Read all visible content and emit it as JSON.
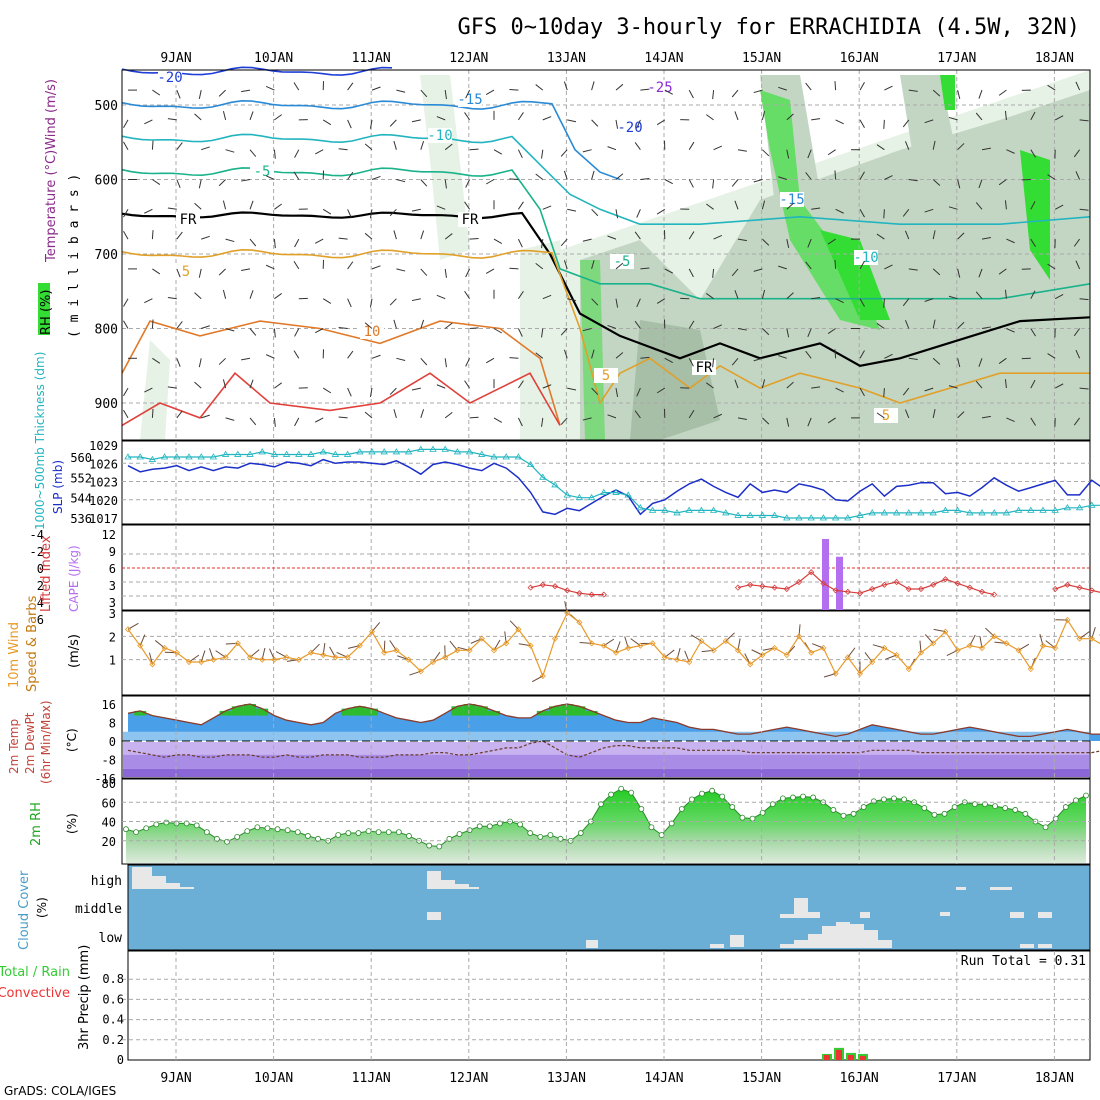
{
  "page": {
    "title": "GFS 0~10day 3-hourly for ERRACHIDIA (4.5W, 32N)",
    "credit": "GrADS: COLA/IGES",
    "dates": [
      "9JAN",
      "10JAN",
      "11JAN",
      "12JAN",
      "13JAN",
      "14JAN",
      "15JAN",
      "16JAN",
      "17JAN",
      "18JAN"
    ]
  },
  "colors": {
    "bg": "#ffffff",
    "grid": "#aaaaaa",
    "frame": "#000000",
    "rh_light": "#e6f2e6",
    "rh_mid": "#c3d6c3",
    "rh_dark": "#a6bfa6",
    "rh_green": "#33dd33",
    "slp": "#1c2fc8",
    "thickness": "#22b5bf",
    "lifted": "#d63c3c",
    "cape": "#b46ef0",
    "wind": "#e89a2a",
    "temp_warm": "#3a8fe0",
    "temp_green": "#2dbb2d",
    "dew": "#8a5fd8",
    "rh2m": "#33cc33",
    "cloud": "#6baed6",
    "precip_total": "#33cc33",
    "precip_conv": "#ee3333"
  },
  "panels": {
    "upper": {
      "ylabel_left": "RH (%)",
      "ylabel_mid": "Temperature (°C)Wind (m/s)",
      "ylabel_right": "( m i l l i b a r s )",
      "yticks": [
        "500",
        "600",
        "700",
        "800",
        "900"
      ]
    },
    "slp": {
      "ylabel_left": "1000~500mb Thickness (dm)",
      "ylabel_right": "SLP (mb)",
      "left_ticks": [
        "560",
        "552",
        "544",
        "536"
      ],
      "right_ticks": [
        "1029",
        "1026",
        "1023",
        "1020",
        "1017"
      ]
    },
    "cape": {
      "ylabel_left": "Lifted Index",
      "ylabel_right": "CAPE (J/kg)",
      "left_ticks": [
        "-4",
        "-2",
        "0",
        "2",
        "4",
        "6"
      ],
      "right_ticks": [
        "12",
        "9",
        "6",
        "3",
        "3"
      ]
    },
    "wind": {
      "ylabel_left": "10m Wind",
      "ylabel_mid": "Speed & Barbs",
      "ylabel_right": "(m/s)",
      "ticks": [
        "3",
        "2",
        "1"
      ]
    },
    "temp": {
      "ylabel_left": "2m Temp",
      "ylabel_mid": "2m DewPt",
      "ylabel_mid2": "(6hr Min/Max)",
      "ylabel_right": "(°C)",
      "ticks": [
        "16",
        "8",
        "0",
        "-8",
        "-16"
      ]
    },
    "rh": {
      "ylabel_left": "2m RH",
      "ylabel_right": "(%)",
      "ticks": [
        "80",
        "60",
        "40",
        "20"
      ]
    },
    "cloud": {
      "ylabel_left": "Cloud Cover",
      "ylabel_right": "(%)",
      "levels": [
        "high",
        "middle",
        "low"
      ]
    },
    "precip": {
      "ylabel_left": "Total / Rain",
      "ylabel_left2": "Convective",
      "ylabel_right": "3hr Precip (mm)",
      "ticks": [
        "0.8",
        "0.6",
        "0.4",
        "0.2",
        "0"
      ],
      "run_total": "Run Total = 0.31"
    }
  },
  "chart_data": [
    {
      "type": "line",
      "name": "upper-air temperature",
      "y_unit": "mb",
      "yticks": [
        500,
        600,
        700,
        800,
        900
      ],
      "annotations": [
        "-25",
        "-20",
        "-20",
        "-15",
        "-15",
        "-10",
        "-10",
        "-5",
        "-5",
        "FR",
        "FR",
        "FR",
        "5",
        "5",
        "5",
        "10"
      ],
      "rh_contours": [
        "10",
        "30",
        "30",
        "30",
        "50"
      ]
    },
    {
      "type": "line",
      "name": "SLP / Thickness",
      "series": [
        {
          "name": "SLP (mb)",
          "values": [
            1025.6,
            1024.6,
            1025.0,
            1025.2,
            1025.6,
            1024.8,
            1025.4,
            1024.8,
            1025.4,
            1025.2,
            1026.0,
            1025.8,
            1025.4,
            1026.2,
            1026.0,
            1025.6,
            1026.6,
            1026.0,
            1026.2,
            1026.2,
            1026.0,
            1025.8,
            1026.4,
            1025.4,
            1024.2,
            1025.8,
            1026.2,
            1025.8,
            1025.2,
            1024.8,
            1026.0,
            1025.2,
            1023.6,
            1021.2,
            1018.0,
            1017.6,
            1018.6,
            1018.2,
            1019.4,
            1020.6,
            1021.6,
            1020.6,
            1017.6,
            1019.4,
            1020.0,
            1021.4,
            1022.6,
            1023.4,
            1022.2,
            1021.2,
            1020.4,
            1022.6,
            1021.2,
            1021.6,
            1021.2,
            1022.6,
            1022.2,
            1021.6,
            1020.0,
            1019.8,
            1021.4,
            1022.6,
            1020.6,
            1022.2,
            1022.4,
            1022.8,
            1022.8,
            1021.0,
            1021.2,
            1020.6,
            1022.0,
            1023.6,
            1022.4,
            1021.4,
            1022.0,
            1022.6,
            1023.2,
            1020.8,
            1020.8,
            1023.2,
            1021.8,
            1021.6,
            1022.2,
            1022.6,
            1022.0,
            1021.4,
            1021.6
          ]
        },
        {
          "name": "Thickness (dm)",
          "values": [
            560,
            560,
            559,
            560,
            560,
            560,
            560,
            560,
            561,
            561,
            561,
            562,
            561,
            561,
            561,
            561,
            562,
            561,
            561,
            562,
            562,
            562,
            562,
            562,
            563,
            563,
            563,
            562,
            562,
            561,
            560,
            560,
            560,
            557,
            552,
            549,
            545,
            544,
            544,
            546,
            546,
            545,
            540,
            539,
            539,
            538,
            539,
            539,
            539,
            538,
            537,
            537,
            537,
            537,
            536,
            536,
            536,
            536,
            536,
            536,
            537,
            538,
            538,
            538,
            538,
            538,
            538,
            539,
            539,
            538,
            538,
            538,
            538,
            539,
            539,
            539,
            539,
            540,
            540,
            541,
            541,
            541,
            541,
            541,
            541,
            541,
            541
          ]
        }
      ]
    },
    {
      "type": "line",
      "name": "Lifted Index / CAPE",
      "x_start_index": 33,
      "series": [
        {
          "name": "Lifted Index",
          "values": [
            2.8,
            2.4,
            2.6,
            3.2,
            3.6,
            3.8,
            3.8,
            null,
            null,
            null,
            null,
            null,
            null,
            null,
            null,
            null,
            null,
            2.8,
            2.4,
            2.6,
            2.8,
            3.0,
            2.0,
            0.6,
            2.2,
            3.2,
            3.4,
            3.6,
            3.0,
            2.4,
            2.0,
            3.0,
            3.0,
            2.4,
            1.6,
            2.2,
            2.8,
            3.4,
            3.8,
            null,
            null,
            null,
            null,
            3.0,
            2.4,
            2.8,
            3.2,
            3.6
          ]
        },
        {
          "name": "CAPE (J/kg)",
          "values": [
            {
              "x": "15JAN21",
              "value": 12.0
            },
            {
              "x": "16JAN00",
              "value": 9.0
            }
          ]
        }
      ]
    },
    {
      "type": "line",
      "name": "10m wind speed (m/s)",
      "values": [
        2.3,
        1.6,
        0.8,
        1.5,
        1.3,
        0.9,
        0.9,
        1.0,
        1.1,
        1.7,
        1.1,
        1.0,
        1.0,
        1.1,
        1.0,
        1.3,
        1.2,
        1.1,
        1.1,
        1.6,
        2.2,
        1.3,
        1.4,
        1.0,
        0.5,
        0.9,
        1.1,
        1.4,
        1.4,
        1.9,
        1.4,
        1.7,
        2.3,
        1.6,
        0.3,
        1.9,
        3.0,
        2.6,
        1.7,
        1.6,
        1.3,
        1.5,
        1.6,
        1.7,
        1.1,
        1.0,
        0.9,
        1.8,
        1.4,
        1.8,
        1.4,
        0.8,
        1.2,
        1.5,
        1.2,
        2.0,
        1.3,
        1.5,
        0.4,
        1.1,
        0.4,
        0.9,
        1.5,
        1.2,
        0.6,
        1.3,
        1.7,
        2.2,
        1.4,
        1.6,
        1.5,
        2.0,
        1.7,
        1.4,
        0.6,
        1.6,
        1.5,
        2.7,
        1.9,
        1.9,
        1.6,
        1.7,
        1.7,
        1.9,
        1.7,
        1.5,
        1.7
      ]
    },
    {
      "type": "area",
      "name": "2m Temp / DewPt (°C)",
      "series": [
        {
          "name": "2m Temp",
          "values": [
            12,
            13,
            11,
            10,
            9,
            8,
            7,
            10,
            13,
            15,
            16,
            14,
            11,
            9,
            8,
            7,
            8,
            12,
            14,
            15,
            14,
            12,
            10,
            9,
            8,
            9,
            12,
            15,
            16,
            15,
            13,
            11,
            10,
            10,
            13,
            15,
            16,
            15,
            13,
            11,
            9,
            8,
            8,
            10,
            9,
            8,
            6,
            5,
            5,
            4,
            3,
            3,
            4,
            5,
            6,
            5,
            4,
            3,
            2,
            3,
            5,
            7,
            6,
            5,
            4,
            3,
            3,
            4,
            5,
            6,
            5,
            4,
            3,
            2,
            2,
            3,
            4,
            5,
            4,
            3,
            3,
            4,
            5,
            6,
            5,
            4,
            3
          ]
        },
        {
          "name": "2m DewPt",
          "values": [
            -4,
            -5,
            -6,
            -7,
            -6,
            -6,
            -7,
            -7,
            -6,
            -6,
            -6,
            -7,
            -7,
            -6,
            -7,
            -7,
            -6,
            -6,
            -6,
            -7,
            -7,
            -7,
            -6,
            -6,
            -6,
            -5,
            -5,
            -6,
            -6,
            -5,
            -4,
            -3,
            -3,
            -1,
            0,
            -3,
            -6,
            -7,
            -5,
            -3,
            -2,
            -2,
            -3,
            -3,
            -3,
            -3,
            -4,
            -4,
            -4,
            -4,
            -4,
            -5,
            -5,
            -5,
            -5,
            -5,
            -5,
            -5,
            -5,
            -5,
            -5,
            -4,
            -4,
            -4,
            -4,
            -5,
            -5,
            -5,
            -5,
            -5,
            -5,
            -5,
            -5,
            -5,
            -5,
            -5,
            -5,
            -5,
            -5,
            -5,
            -4,
            -4,
            -4,
            -4,
            -3,
            -2,
            -2
          ]
        }
      ]
    },
    {
      "type": "area",
      "name": "2m RH (%)",
      "values": [
        32,
        29,
        33,
        37,
        39,
        38,
        38,
        36,
        29,
        22,
        19,
        24,
        30,
        34,
        33,
        32,
        31,
        29,
        25,
        22,
        20,
        26,
        28,
        28,
        30,
        29,
        29,
        29,
        25,
        20,
        15,
        14,
        22,
        27,
        31,
        35,
        35,
        38,
        40,
        37,
        28,
        24,
        26,
        22,
        20,
        28,
        40,
        58,
        68,
        74,
        70,
        53,
        34,
        26,
        38,
        53,
        63,
        69,
        72,
        66,
        55,
        44,
        43,
        49,
        58,
        64,
        65,
        66,
        65,
        60,
        52,
        46,
        48,
        55,
        61,
        63,
        64,
        63,
        60,
        54,
        47,
        48,
        55,
        60,
        58,
        58,
        56,
        54,
        52,
        48,
        40,
        34,
        43,
        55,
        62,
        67
      ]
    },
    {
      "type": "area",
      "name": "Cloud Cover",
      "levels": [
        "high",
        "middle",
        "low"
      ]
    },
    {
      "type": "bar",
      "name": "3hr Precip (mm)",
      "ylim": [
        0,
        1.0
      ],
      "series": [
        {
          "name": "Total / Rain",
          "values": [
            {
              "x": "15JAN18",
              "value": 0.06
            },
            {
              "x": "15JAN21",
              "value": 0.12
            },
            {
              "x": "16JAN00",
              "value": 0.07
            },
            {
              "x": "16JAN03",
              "value": 0.06
            }
          ]
        },
        {
          "name": "Convective",
          "values": [
            {
              "x": "15JAN18",
              "value": 0.05
            },
            {
              "x": "15JAN21",
              "value": 0.1
            },
            {
              "x": "16JAN00",
              "value": 0.05
            },
            {
              "x": "16JAN03",
              "value": 0.04
            }
          ]
        }
      ],
      "run_total": 0.31
    }
  ]
}
